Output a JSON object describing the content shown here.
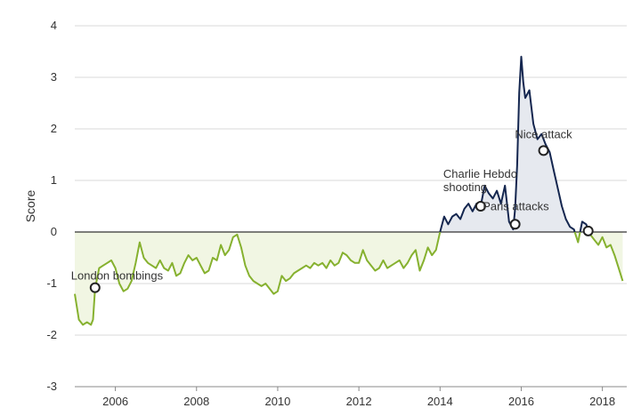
{
  "chart_data": {
    "type": "area",
    "title": "",
    "xlabel": "",
    "ylabel": "Score",
    "xlim": [
      2005.0,
      2018.6
    ],
    "ylim": [
      -3,
      4
    ],
    "y_ticks": [
      4,
      3,
      2,
      1,
      0,
      -1,
      -2,
      -3
    ],
    "x_ticks": [
      "2006",
      "2008",
      "2010",
      "2012",
      "2014",
      "2016",
      "2018"
    ],
    "grid": "horizontal",
    "colors": {
      "positive_line": "#14264f",
      "positive_fill": "#e6e9ef",
      "negative_line": "#86b12f",
      "negative_fill": "#f1f6e3",
      "zero_line": "#333333",
      "grid": "#d9d9d9"
    },
    "series": [
      {
        "x": [
          2005.0,
          2005.1,
          2005.2,
          2005.3,
          2005.4,
          2005.45,
          2005.5,
          2005.6,
          2005.7,
          2005.8,
          2005.9,
          2006.0,
          2006.1,
          2006.2,
          2006.3,
          2006.4,
          2006.5,
          2006.6,
          2006.7,
          2006.8,
          2006.9,
          2007.0,
          2007.1,
          2007.2,
          2007.3,
          2007.4,
          2007.5,
          2007.6,
          2007.7,
          2007.8,
          2007.9,
          2008.0,
          2008.1,
          2008.2,
          2008.3,
          2008.4,
          2008.5,
          2008.6,
          2008.7,
          2008.8,
          2008.9,
          2009.0,
          2009.1,
          2009.2,
          2009.3,
          2009.4,
          2009.5,
          2009.6,
          2009.7,
          2009.8,
          2009.9,
          2010.0,
          2010.1,
          2010.2,
          2010.3,
          2010.4,
          2010.5,
          2010.6,
          2010.7,
          2010.8,
          2010.9,
          2011.0,
          2011.1,
          2011.2,
          2011.3,
          2011.4,
          2011.5,
          2011.6,
          2011.7,
          2011.8,
          2011.9,
          2012.0,
          2012.1,
          2012.2,
          2012.3,
          2012.4,
          2012.5,
          2012.6,
          2012.7,
          2012.8,
          2012.9,
          2013.0,
          2013.1,
          2013.2,
          2013.3,
          2013.4,
          2013.5,
          2013.6,
          2013.7,
          2013.8,
          2013.9,
          2014.0,
          2014.1,
          2014.2,
          2014.3,
          2014.4,
          2014.5,
          2014.6,
          2014.7,
          2014.8,
          2014.9,
          2015.0,
          2015.1,
          2015.2,
          2015.3,
          2015.4,
          2015.5,
          2015.6,
          2015.7,
          2015.8,
          2015.85,
          2015.9,
          2015.95,
          2016.0,
          2016.05,
          2016.1,
          2016.2,
          2016.3,
          2016.4,
          2016.5,
          2016.6,
          2016.7,
          2016.8,
          2016.9,
          2017.0,
          2017.1,
          2017.2,
          2017.3,
          2017.4,
          2017.5,
          2017.6,
          2017.7,
          2017.8,
          2017.9,
          2018.0,
          2018.1,
          2018.2,
          2018.3,
          2018.4,
          2018.5
        ],
        "y": [
          -1.2,
          -1.7,
          -1.8,
          -1.75,
          -1.8,
          -1.7,
          -1.1,
          -0.7,
          -0.65,
          -0.6,
          -0.55,
          -0.7,
          -1.0,
          -1.15,
          -1.1,
          -0.95,
          -0.6,
          -0.2,
          -0.5,
          -0.6,
          -0.65,
          -0.7,
          -0.55,
          -0.7,
          -0.75,
          -0.6,
          -0.85,
          -0.8,
          -0.6,
          -0.45,
          -0.55,
          -0.5,
          -0.65,
          -0.8,
          -0.75,
          -0.5,
          -0.55,
          -0.25,
          -0.45,
          -0.35,
          -0.1,
          -0.05,
          -0.3,
          -0.65,
          -0.85,
          -0.95,
          -1.0,
          -1.05,
          -1.0,
          -1.1,
          -1.2,
          -1.15,
          -0.85,
          -0.95,
          -0.9,
          -0.8,
          -0.75,
          -0.7,
          -0.65,
          -0.7,
          -0.6,
          -0.65,
          -0.6,
          -0.7,
          -0.55,
          -0.65,
          -0.6,
          -0.4,
          -0.45,
          -0.55,
          -0.6,
          -0.6,
          -0.35,
          -0.55,
          -0.65,
          -0.75,
          -0.7,
          -0.55,
          -0.7,
          -0.65,
          -0.6,
          -0.55,
          -0.7,
          -0.6,
          -0.45,
          -0.35,
          -0.75,
          -0.55,
          -0.3,
          -0.45,
          -0.35,
          0.0,
          0.3,
          0.15,
          0.3,
          0.35,
          0.25,
          0.45,
          0.55,
          0.4,
          0.55,
          0.5,
          0.9,
          0.75,
          0.65,
          0.8,
          0.55,
          0.9,
          0.2,
          0.05,
          0.45,
          1.3,
          2.7,
          3.4,
          2.9,
          2.6,
          2.75,
          2.1,
          1.8,
          1.9,
          1.7,
          1.55,
          1.2,
          0.85,
          0.5,
          0.25,
          0.1,
          0.05,
          -0.2,
          0.2,
          0.15,
          -0.05,
          -0.15,
          -0.25,
          -0.1,
          -0.3,
          -0.25,
          -0.45,
          -0.7,
          -0.95
        ]
      }
    ],
    "annotations": [
      {
        "label": "London bombings",
        "x": 2005.5,
        "y": -1.08
      },
      {
        "label": "Charlie Hebdo",
        "label2": "shooting",
        "x": 2015.0,
        "y": 0.5
      },
      {
        "label": "Paris attacks",
        "x": 2015.85,
        "y": 0.15
      },
      {
        "label": "Nice attack",
        "x": 2016.55,
        "y": 1.58
      },
      {
        "label": "",
        "x": 2017.65,
        "y": 0.02
      }
    ]
  }
}
